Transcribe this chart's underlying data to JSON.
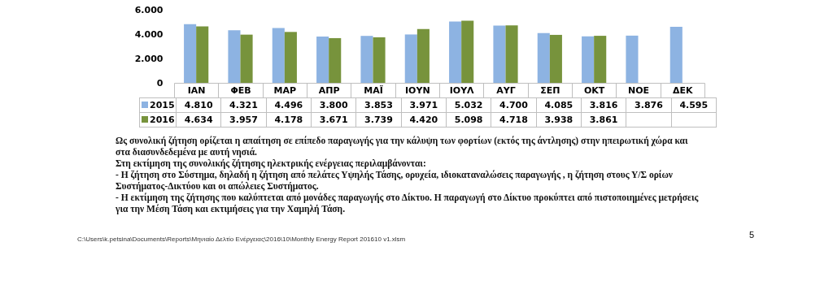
{
  "chart_data": {
    "type": "bar",
    "categories": [
      "ΙΑΝ",
      "ΦΕΒ",
      "ΜΑΡ",
      "ΑΠΡ",
      "ΜΑΪ",
      "ΙΟΥΝ",
      "ΙΟΥΛ",
      "ΑΥΓ",
      "ΣΕΠ",
      "ΟΚΤ",
      "ΝΟΕ",
      "ΔΕΚ"
    ],
    "series": [
      {
        "name": "2015",
        "color": "#8db3e2",
        "values": [
          4810,
          4321,
          4496,
          3800,
          3853,
          3971,
          5032,
          4700,
          4085,
          3816,
          3876,
          4595
        ],
        "value_labels": [
          "4.810",
          "4.321",
          "4.496",
          "3.800",
          "3.853",
          "3.971",
          "5.032",
          "4.700",
          "4.085",
          "3.816",
          "3.876",
          "4.595"
        ]
      },
      {
        "name": "2016",
        "color": "#77933c",
        "values": [
          4634,
          3957,
          4178,
          3671,
          3739,
          4420,
          5098,
          4718,
          3938,
          3861,
          null,
          null
        ],
        "value_labels": [
          "4.634",
          "3.957",
          "4.178",
          "3.671",
          "3.739",
          "4.420",
          "5.098",
          "4.718",
          "3.938",
          "3.861",
          null,
          null
        ]
      }
    ],
    "ylim": [
      0,
      6000
    ],
    "yticks": [
      0,
      {
        "value": 2000,
        "label": "2.000"
      },
      {
        "value": 4000,
        "label": "4.000"
      },
      {
        "value": 6000,
        "label": "6.000"
      }
    ],
    "legend": "bottom left",
    "grid": false,
    "annotations": [
      "Ως συνολική ζήτηση ορίζεται η απαίτηση σε επίπεδο παραγωγής για την κάλυψη των φορτίων (εκτός της άντλησης) στην ηπειρωτική χώρα και στα διασυνδεδεμένα με αυτή νησιά.",
      "Στη εκτίμηση της συνολικής ζήτησης ηλεκτρικής ενέργειας περιλαμβάνονται:",
      "- Η ζήτηση στο Σύστημα, δηλαδή η ζήτηση από πελάτες Υψηλής Τάσης, ορυχεία, ιδιοκαταναλώσεις παραγωγής , η ζήτηση στους Υ/Σ ορίων Συστήματος-Δικτύου και οι απώλειες Συστήματος.",
      "- Η εκτίμηση της ζήτησης που καλύπτεται από μονάδες παραγωγής στο Δίκτυο. Η παραγωγή στο Δίκτυο προκύπτει από πιστοποιημένες μετρήσεις για την Μέση Τάση και εκτιμήσεις για την Χαμηλή Τάση.",
      "C:\\Users\\k.petsina\\Documents\\Reports\\Μηνιαίο Δελτίο Ενέργειας\\2016\\10\\Monthly Energy Report 201610 v1.xlsm",
      "5"
    ]
  }
}
